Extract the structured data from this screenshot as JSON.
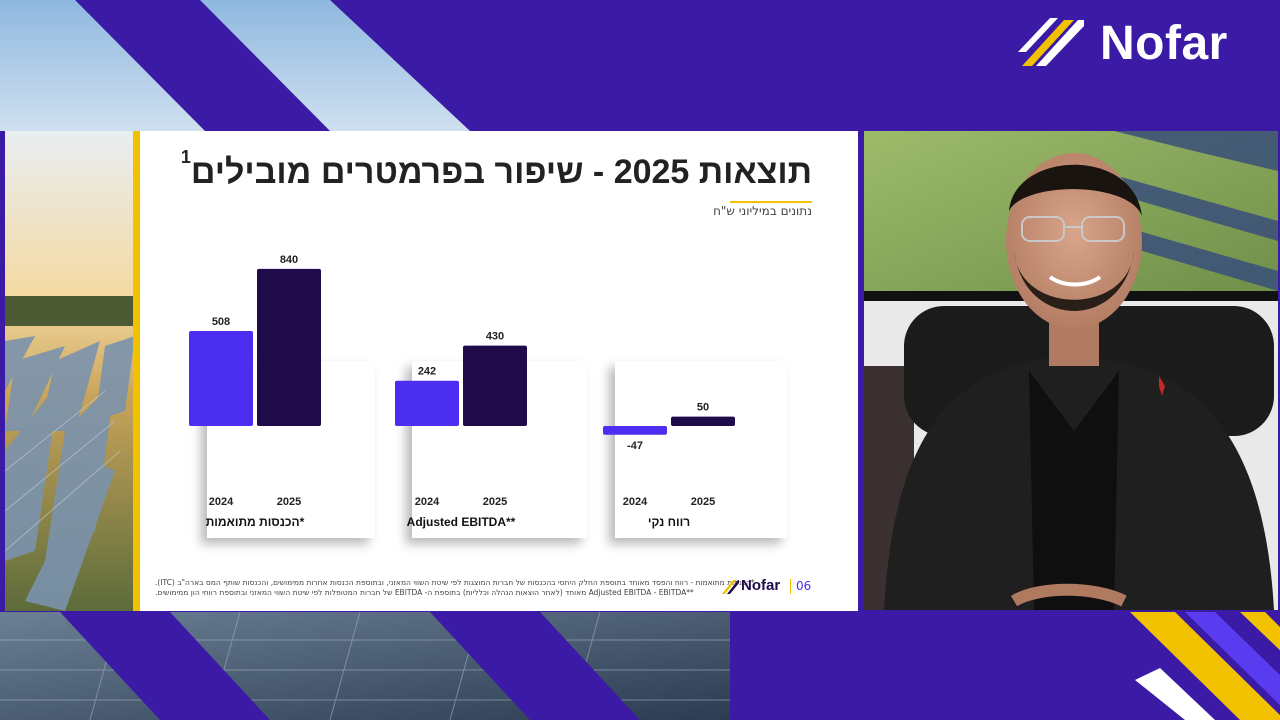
{
  "brand": {
    "name": "Nofar"
  },
  "slide": {
    "title": "תוצאות 2025 - שיפור בפרמטרים מובילים",
    "title_sup": "1",
    "subtitle": "נתונים במיליוני ש\"ח",
    "footnote_1": "*הכנסות מתואמות - רווח והפסד מאוחד בתוספת החלק היחסי בהכנסות של חברות המוצגות לפי שיטת השווי המאזני, ובתוספת הכנסות אחרות ממימושים, והכנסות שותף המס בארה\"ב (ITC).",
    "footnote_2": "**Adjusted EBITDA - EBITDA מאוחד (לאחר הוצאות הנהלה וכלליות) בתוספת ה- EBITDA של חברות המטופלות לפי שיטת השווי המאזני ובתוספת רווחי הון ממימושים.",
    "logo_text": "Nofar",
    "page_number": "06"
  },
  "colors": {
    "bar_2024": "#4b2ef0",
    "bar_2025": "#1f0a4a",
    "accent": "#f2c200",
    "purple_bg": "#3b1aa6"
  },
  "chart_data": [
    {
      "type": "bar",
      "title": "הכנסות מתואמות*",
      "categories": [
        "2024",
        "2025"
      ],
      "values": [
        508,
        840
      ]
    },
    {
      "type": "bar",
      "title": "Adjusted EBITDA**",
      "categories": [
        "2024",
        "2025"
      ],
      "values": [
        242,
        430
      ]
    },
    {
      "type": "bar",
      "title": "רווח נקי",
      "categories": [
        "2024",
        "2025"
      ],
      "values": [
        -47,
        50
      ]
    }
  ]
}
